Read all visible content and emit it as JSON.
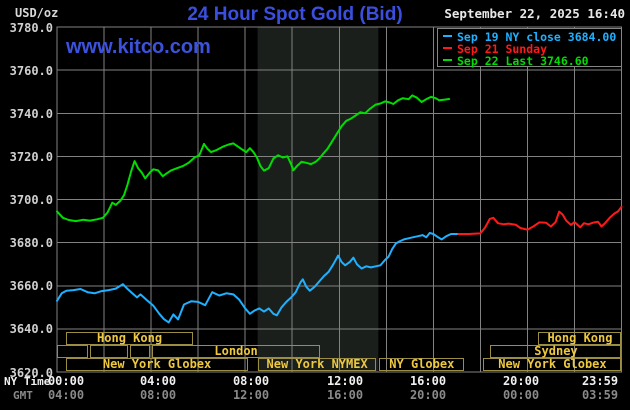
{
  "header": {
    "unit_label": "USD/oz",
    "title": "24 Hour Spot Gold (Bid)",
    "datetime": "September 22, 2025 16:40",
    "watermark": "www.kitco.com"
  },
  "colors": {
    "title_blue": "#3b4ede",
    "watermark_blue": "#3c52dc",
    "grid_gray": "#828282",
    "session_border": "#9b8e42",
    "session_text": "#eec83e",
    "highlight_band": "#1b1f1b",
    "cyan_series": "#1fb0ff",
    "red_series": "#ff1a1a",
    "green_series": "#00dd00"
  },
  "legend": {
    "entries": [
      {
        "id": "sep19",
        "label": "Sep 19 NY close 3684.00",
        "color": "#1fb0ff"
      },
      {
        "id": "sep21",
        "label": "Sep 21 Sunday",
        "color": "#ff1a1a"
      },
      {
        "id": "sep22",
        "label": "Sep 22 Last 3746.60",
        "color": "#00dd00"
      }
    ]
  },
  "axes": {
    "y_tick_labels": [
      "3780.0",
      "3760.0",
      "3740.0",
      "3720.0",
      "3700.0",
      "3680.0",
      "3660.0",
      "3640.0",
      "3620.0"
    ],
    "x_row1_label": "NY Time",
    "x_row2_label": "GMT",
    "x_row1_ticks": [
      "00:00",
      "04:00",
      "08:00",
      "12:00",
      "16:00",
      "20:00",
      "23:59"
    ],
    "x_row2_ticks": [
      "04:00",
      "08:00",
      "12:00",
      "16:00",
      "20:00",
      "00:00",
      "03:59"
    ]
  },
  "sessions": [
    {
      "row": 1,
      "start_h": 0.38,
      "end_h": 5.79,
      "label": "Hong Kong"
    },
    {
      "row": 1,
      "start_h": 20.47,
      "end_h": 24,
      "label": "Hong Kong"
    },
    {
      "row": 2,
      "start_h": 0,
      "end_h": 1.32,
      "label": ""
    },
    {
      "row": 2,
      "start_h": 1.4,
      "end_h": 3.02,
      "label": ""
    },
    {
      "row": 2,
      "start_h": 3.11,
      "end_h": 3.96,
      "label": ""
    },
    {
      "row": 2,
      "start_h": 4.04,
      "end_h": 11.19,
      "label": "London"
    },
    {
      "row": 2,
      "start_h": 18.43,
      "end_h": 24,
      "label": "Sydney"
    },
    {
      "row": 3,
      "start_h": 0.38,
      "end_h": 8.13,
      "label": "New York Globex"
    },
    {
      "row": 3,
      "start_h": 8.55,
      "end_h": 13.57,
      "label": "New York NYMEX"
    },
    {
      "row": 3,
      "start_h": 13.7,
      "end_h": 17.32,
      "label": "NY Globex"
    },
    {
      "row": 3,
      "start_h": 18.13,
      "end_h": 24,
      "label": "New York Globex"
    }
  ],
  "chart_data": {
    "type": "line",
    "title": "24 Hour Spot Gold (Bid)",
    "xlabel": "NY Time (hours, 00:00-23:59)",
    "ylabel": "USD/oz",
    "xlim": [
      0,
      24
    ],
    "ylim": [
      3620,
      3780
    ],
    "grid": true,
    "x_gridline_every_hours": 2,
    "y_gridline_every": 20,
    "highlight_band_hours": [
      8.53,
      13.66
    ],
    "series": [
      {
        "id": "sep19",
        "name": "Sep 19 NY close 3684.00",
        "color": "#1fb0ff",
        "points": [
          [
            0,
            3653
          ],
          [
            0.2,
            3656.5
          ],
          [
            0.4,
            3657.7
          ],
          [
            0.7,
            3658
          ],
          [
            1.0,
            3658.5
          ],
          [
            1.3,
            3657
          ],
          [
            1.6,
            3656.5
          ],
          [
            1.9,
            3657.5
          ],
          [
            2.2,
            3658
          ],
          [
            2.5,
            3658.7
          ],
          [
            2.8,
            3660.7
          ],
          [
            3.0,
            3658.5
          ],
          [
            3.2,
            3656.5
          ],
          [
            3.4,
            3654.6
          ],
          [
            3.55,
            3656
          ],
          [
            3.8,
            3653.5
          ],
          [
            4.1,
            3650.7
          ],
          [
            4.35,
            3647
          ],
          [
            4.55,
            3644.5
          ],
          [
            4.75,
            3643
          ],
          [
            4.95,
            3646.7
          ],
          [
            5.15,
            3644.4
          ],
          [
            5.4,
            3651.3
          ],
          [
            5.7,
            3652.8
          ],
          [
            6.0,
            3652.5
          ],
          [
            6.3,
            3651
          ],
          [
            6.6,
            3657
          ],
          [
            6.9,
            3655.5
          ],
          [
            7.2,
            3656.5
          ],
          [
            7.5,
            3656
          ],
          [
            7.75,
            3653.5
          ],
          [
            8.0,
            3649.5
          ],
          [
            8.2,
            3647
          ],
          [
            8.4,
            3648.5
          ],
          [
            8.6,
            3649.5
          ],
          [
            8.8,
            3648
          ],
          [
            9.0,
            3649.5
          ],
          [
            9.2,
            3647
          ],
          [
            9.35,
            3646.3
          ],
          [
            9.55,
            3650
          ],
          [
            9.75,
            3652.5
          ],
          [
            9.95,
            3654.5
          ],
          [
            10.15,
            3657
          ],
          [
            10.35,
            3661.5
          ],
          [
            10.45,
            3663
          ],
          [
            10.6,
            3659.5
          ],
          [
            10.75,
            3657.7
          ],
          [
            10.95,
            3659.5
          ],
          [
            11.15,
            3662
          ],
          [
            11.35,
            3664.5
          ],
          [
            11.55,
            3666.5
          ],
          [
            11.75,
            3670
          ],
          [
            11.95,
            3674
          ],
          [
            12.1,
            3671
          ],
          [
            12.25,
            3669.5
          ],
          [
            12.45,
            3671
          ],
          [
            12.6,
            3673
          ],
          [
            12.75,
            3670
          ],
          [
            12.95,
            3668
          ],
          [
            13.15,
            3669
          ],
          [
            13.35,
            3668.5
          ],
          [
            13.55,
            3669
          ],
          [
            13.75,
            3669.5
          ],
          [
            13.95,
            3672
          ],
          [
            14.1,
            3673.5
          ],
          [
            14.25,
            3677
          ],
          [
            14.4,
            3679.5
          ],
          [
            14.55,
            3680.5
          ],
          [
            14.75,
            3681.5
          ],
          [
            14.95,
            3682
          ],
          [
            15.15,
            3682.5
          ],
          [
            15.35,
            3683
          ],
          [
            15.55,
            3683.5
          ],
          [
            15.7,
            3682.5
          ],
          [
            15.85,
            3684.5
          ],
          [
            16.0,
            3684
          ],
          [
            16.2,
            3682.5
          ],
          [
            16.35,
            3681.5
          ],
          [
            16.55,
            3683
          ],
          [
            16.75,
            3684
          ],
          [
            17.07,
            3684
          ]
        ]
      },
      {
        "id": "sep21",
        "name": "Sep 21 Sunday",
        "color": "#ff1a1a",
        "points": [
          [
            17.07,
            3684
          ],
          [
            17.5,
            3684
          ],
          [
            18.0,
            3684.3
          ],
          [
            18.2,
            3687
          ],
          [
            18.4,
            3691
          ],
          [
            18.55,
            3691.5
          ],
          [
            18.75,
            3689
          ],
          [
            19.0,
            3688.5
          ],
          [
            19.2,
            3688.8
          ],
          [
            19.5,
            3688.3
          ],
          [
            19.7,
            3686.8
          ],
          [
            20.0,
            3686
          ],
          [
            20.25,
            3687.5
          ],
          [
            20.5,
            3689.4
          ],
          [
            20.8,
            3689.2
          ],
          [
            21.0,
            3687.5
          ],
          [
            21.2,
            3689.5
          ],
          [
            21.35,
            3694.4
          ],
          [
            21.5,
            3693
          ],
          [
            21.65,
            3690.2
          ],
          [
            21.85,
            3688.2
          ],
          [
            22.0,
            3689.5
          ],
          [
            22.25,
            3687.1
          ],
          [
            22.4,
            3689
          ],
          [
            22.6,
            3688.5
          ],
          [
            22.8,
            3689.3
          ],
          [
            23.0,
            3689.7
          ],
          [
            23.15,
            3687.5
          ],
          [
            23.3,
            3689
          ],
          [
            23.5,
            3691.5
          ],
          [
            23.7,
            3693.5
          ],
          [
            23.85,
            3694.5
          ],
          [
            24.0,
            3696.6
          ]
        ]
      },
      {
        "id": "sep22",
        "name": "Sep 22 Last 3746.60",
        "color": "#00dd00",
        "points": [
          [
            0,
            3694.5
          ],
          [
            0.25,
            3691.5
          ],
          [
            0.5,
            3690.5
          ],
          [
            0.8,
            3690
          ],
          [
            1.1,
            3690.6
          ],
          [
            1.4,
            3690.2
          ],
          [
            1.7,
            3690.8
          ],
          [
            1.95,
            3691.5
          ],
          [
            2.15,
            3694
          ],
          [
            2.35,
            3698.5
          ],
          [
            2.5,
            3697.5
          ],
          [
            2.7,
            3699.5
          ],
          [
            2.85,
            3702
          ],
          [
            3.0,
            3707
          ],
          [
            3.15,
            3713
          ],
          [
            3.3,
            3717.8
          ],
          [
            3.45,
            3714.5
          ],
          [
            3.6,
            3712.5
          ],
          [
            3.75,
            3709.8
          ],
          [
            3.95,
            3712.5
          ],
          [
            4.1,
            3714
          ],
          [
            4.3,
            3713.5
          ],
          [
            4.5,
            3710.8
          ],
          [
            4.65,
            3712
          ],
          [
            4.85,
            3713.5
          ],
          [
            5.1,
            3714.5
          ],
          [
            5.35,
            3715.5
          ],
          [
            5.6,
            3717
          ],
          [
            5.85,
            3719.5
          ],
          [
            6.05,
            3720.5
          ],
          [
            6.25,
            3725.8
          ],
          [
            6.4,
            3723.5
          ],
          [
            6.55,
            3722
          ],
          [
            6.8,
            3723
          ],
          [
            7.05,
            3724.5
          ],
          [
            7.3,
            3725.5
          ],
          [
            7.5,
            3726
          ],
          [
            7.7,
            3724.5
          ],
          [
            7.9,
            3723
          ],
          [
            8.05,
            3722
          ],
          [
            8.2,
            3723.8
          ],
          [
            8.35,
            3722
          ],
          [
            8.5,
            3719.5
          ],
          [
            8.65,
            3715.5
          ],
          [
            8.8,
            3713.4
          ],
          [
            9.0,
            3714.5
          ],
          [
            9.2,
            3719
          ],
          [
            9.4,
            3720.5
          ],
          [
            9.6,
            3719.5
          ],
          [
            9.8,
            3720
          ],
          [
            9.95,
            3716.5
          ],
          [
            10.05,
            3713.5
          ],
          [
            10.2,
            3715.5
          ],
          [
            10.4,
            3717.5
          ],
          [
            10.6,
            3717
          ],
          [
            10.8,
            3716.4
          ],
          [
            11.0,
            3717.5
          ],
          [
            11.15,
            3719
          ],
          [
            11.3,
            3721
          ],
          [
            11.5,
            3723.5
          ],
          [
            11.7,
            3727
          ],
          [
            11.9,
            3730.5
          ],
          [
            12.1,
            3734
          ],
          [
            12.3,
            3736.5
          ],
          [
            12.5,
            3737.5
          ],
          [
            12.7,
            3739
          ],
          [
            12.9,
            3740.5
          ],
          [
            13.1,
            3740
          ],
          [
            13.3,
            3742
          ],
          [
            13.55,
            3744
          ],
          [
            13.75,
            3744.5
          ],
          [
            13.95,
            3745.5
          ],
          [
            14.15,
            3745
          ],
          [
            14.3,
            3744.3
          ],
          [
            14.5,
            3746
          ],
          [
            14.7,
            3747
          ],
          [
            14.95,
            3746.5
          ],
          [
            15.1,
            3748.3
          ],
          [
            15.3,
            3747.2
          ],
          [
            15.5,
            3745.2
          ],
          [
            15.7,
            3746.5
          ],
          [
            15.9,
            3747.6
          ],
          [
            16.1,
            3747
          ],
          [
            16.25,
            3746
          ],
          [
            16.45,
            3746.3
          ],
          [
            16.67,
            3746.6
          ]
        ]
      }
    ]
  }
}
